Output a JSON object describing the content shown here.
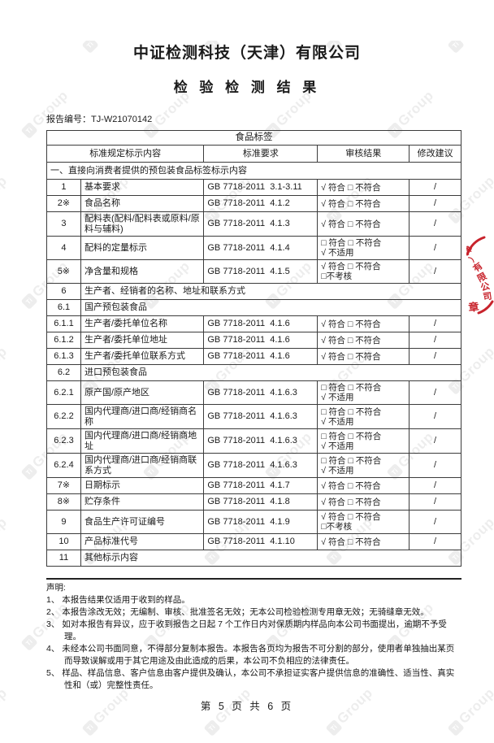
{
  "page": {
    "company": "中证检测科技（天津）有限公司",
    "title": "检 验 检 测 结 果",
    "report_no_label": "报告编号：",
    "report_no": "TJ-W21070142",
    "page_footer": "第 5 页 共 6 页"
  },
  "table": {
    "title": "食品标签",
    "headers": [
      "标准规定标示内容",
      "标准要求",
      "审核结果",
      "修改建议"
    ],
    "rows": [
      {
        "section": "一、直接向消费者提供的预包装食品标签标示内容"
      },
      {
        "no": "1",
        "item": "基本要求",
        "standard": "GB 7718-2011  3.1-3.11",
        "result": [
          "√ 符合 □ 不符合"
        ],
        "advice": "/"
      },
      {
        "no": "2※",
        "item": "食品名称",
        "standard": "GB 7718-2011  4.1.2",
        "result": [
          "√ 符合 □ 不符合"
        ],
        "advice": "/"
      },
      {
        "no": "3",
        "item": "配料表(配料/配料表或原料/原料与辅料)",
        "standard": "GB 7718-2011  4.1.3",
        "result": [
          "√ 符合 □ 不符合"
        ],
        "advice": "/"
      },
      {
        "no": "4",
        "item": "配料的定量标示",
        "standard": "GB 7718-2011  4.1.4",
        "result": [
          "□ 符合 □ 不符合",
          "√ 不适用"
        ],
        "advice": "/"
      },
      {
        "no": "5※",
        "item": "净含量和规格",
        "standard": "GB 7718-2011  4.1.5",
        "result": [
          "√ 符合 □ 不符合",
          "□不考核"
        ],
        "advice": "/"
      },
      {
        "no": "6",
        "span_label": "生产者、经销者的名称、地址和联系方式"
      },
      {
        "no": "6.1",
        "span_label": "国产预包装食品"
      },
      {
        "no": "6.1.1",
        "item": "生产者/委托单位名称",
        "standard": "GB 7718-2011  4.1.6",
        "result": [
          "√ 符合 □ 不符合"
        ],
        "advice": "/"
      },
      {
        "no": "6.1.2",
        "item": "生产者/委托单位地址",
        "standard": "GB 7718-2011  4.1.6",
        "result": [
          "√ 符合 □ 不符合"
        ],
        "advice": "/"
      },
      {
        "no": "6.1.3",
        "item": "生产者/委托单位联系方式",
        "standard": "GB 7718-2011  4.1.6",
        "result": [
          "√ 符合 □ 不符合"
        ],
        "advice": "/"
      },
      {
        "no": "6.2",
        "span_label": "进口预包装食品"
      },
      {
        "no": "6.2.1",
        "item": "原产国/原产地区",
        "standard": "GB 7718-2011  4.1.6.3",
        "result": [
          "□ 符合 □ 不符合",
          "√ 不适用"
        ],
        "advice": "/"
      },
      {
        "no": "6.2.2",
        "item": "国内代理商/进口商/经销商名称",
        "standard": "GB 7718-2011  4.1.6.3",
        "result": [
          "□ 符合 □ 不符合",
          "√ 不适用"
        ],
        "advice": "/"
      },
      {
        "no": "6.2.3",
        "item": "国内代理商/进口商/经销商地址",
        "standard": "GB 7718-2011  4.1.6.3",
        "result": [
          "□ 符合 □ 不符合",
          "√ 不适用"
        ],
        "advice": "/"
      },
      {
        "no": "6.2.4",
        "item": "国内代理商/进口商/经销商联系方式",
        "standard": "GB 7718-2011  4.1.6.3",
        "result": [
          "□ 符合 □ 不符合",
          "√ 不适用"
        ],
        "advice": "/"
      },
      {
        "no": "7※",
        "item": "日期标示",
        "standard": "GB 7718-2011  4.1.7",
        "result": [
          "√ 符合 □ 不符合"
        ],
        "advice": "/"
      },
      {
        "no": "8※",
        "item": "贮存条件",
        "standard": "GB 7718-2011  4.1.8",
        "result": [
          "√ 符合 □ 不符合"
        ],
        "advice": "/"
      },
      {
        "no": "9",
        "item": "食品生产许可证编号",
        "standard": "GB 7718-2011  4.1.9",
        "result": [
          "√ 符合 □ 不符合",
          "□不考核"
        ],
        "advice": "/"
      },
      {
        "no": "10",
        "item": "产品标准代号",
        "standard": "GB 7718-2011  4.1.10",
        "result": [
          "√ 符合 □ 不符合"
        ],
        "advice": "/"
      },
      {
        "no": "11",
        "span_label": "其他标示内容"
      }
    ]
  },
  "declaration": {
    "title": "声明:",
    "items": [
      "1、 本报告结果仅适用于收到的样品。",
      "2、 本报告涂改无效；无编制、审核、批准签名无效；无本公司检验检测专用章无效；无骑缝章无效。",
      "3、 如对本报告有异议，应于收到报告之日起 7 个工作日内对保质期内样品向本公司书面提出，逾期不予受理。",
      "4、 未经本公司书面同意，不得部分复制本报告。本报告各页均为报告不可分割的部分，使用者单独抽出某页而导致误解或用于其它用途及由此造成的后果，本公司不负相应的法律责任。",
      "5、 样品、样品信息、客户信息由客户提供及确认，本公司不承担证实客户提供信息的准确性、适当性、真实性和（或）完整性责任。"
    ]
  },
  "seal": {
    "arc_text": "津）有限公司",
    "bottom_text": "章",
    "color": "#c8232c"
  },
  "watermark": {
    "logo_text": "Ti",
    "text": "Group"
  }
}
